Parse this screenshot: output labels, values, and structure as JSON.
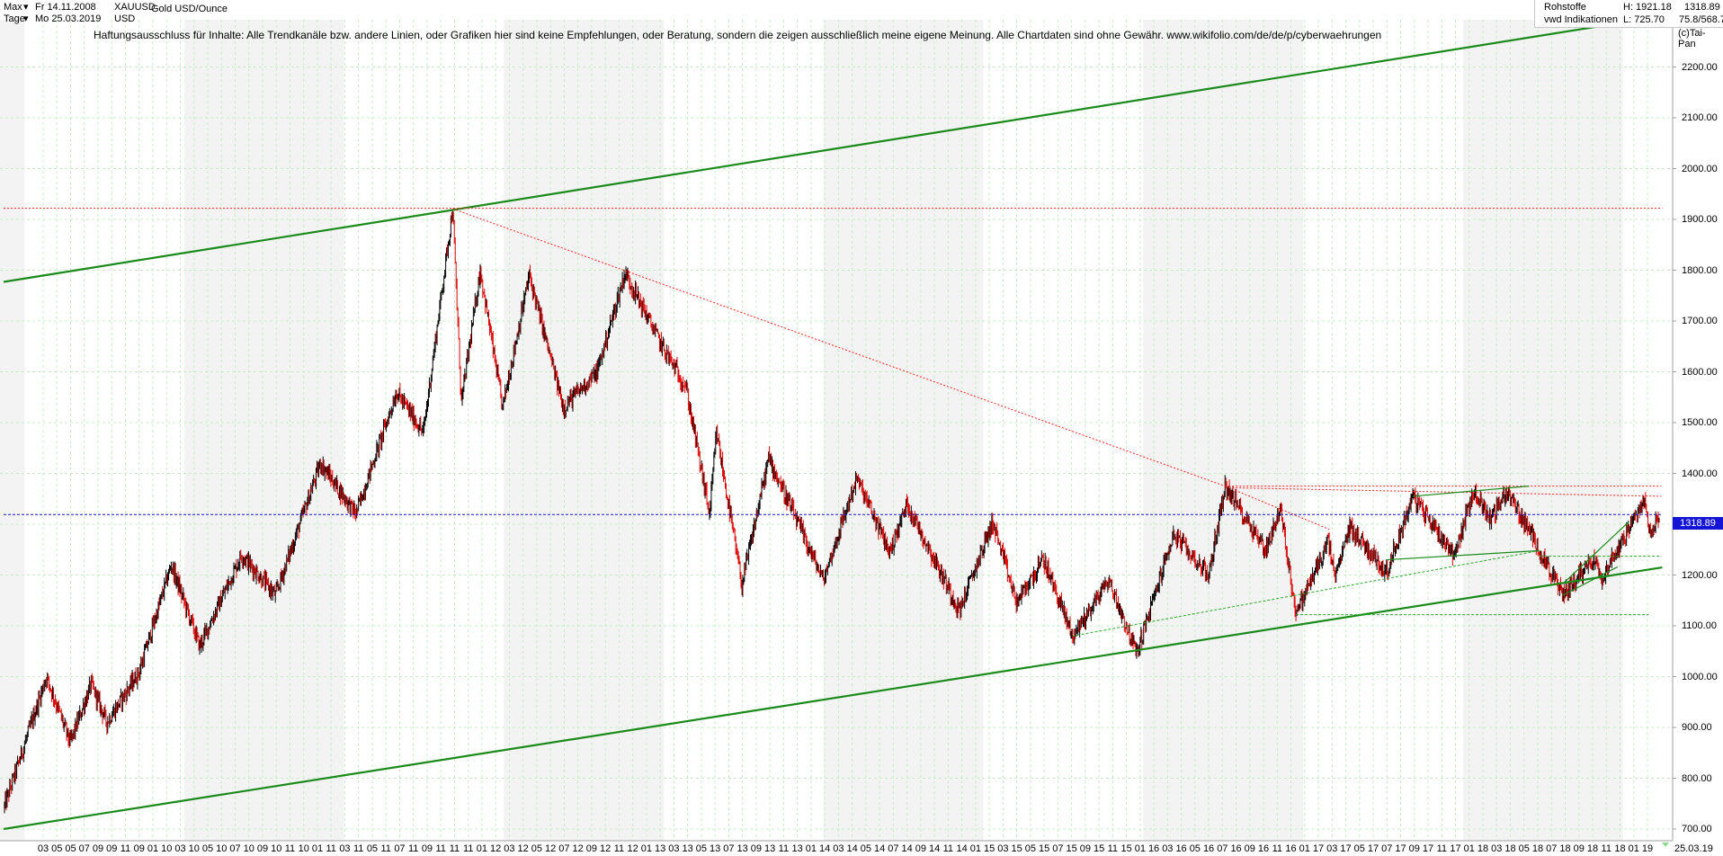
{
  "header": {
    "range_label": "Max",
    "period_label": "Tage",
    "start_date": "Fr 14.11.2008",
    "end_date": "Mo 25.03.2019",
    "symbol": "XAUUSD",
    "currency": "USD",
    "instrument_name": "Gold USD/Ounce"
  },
  "info_box": {
    "category": "Rohstoffe",
    "source": "vwd Indikationen",
    "high": "H: 1921.18",
    "low": "L: 725.70",
    "last": "1318.89",
    "ratio": "75.8/568.7"
  },
  "disclaimer": "Haftungsausschluss für Inhalte: Alle Trendkanäle bzw. andere Linien, oder Grafiken hier sind keine Empfehlungen, oder Beratung, sondern die zeigen ausschließlich meine eigene Meinung. Alle Chartdaten sind ohne Gewähr.  www.wikifolio.com/de/de/p/cyberwaehrungen",
  "copyright": "(c)Tai-Pan",
  "price_badge": "1318.89",
  "end_date_label": "25.03.19",
  "colors": {
    "trend_green": "#1a8a1a",
    "resistance_red": "#ff2020",
    "last_price_blue": "#1414d6",
    "grid_green": "#c8ecc8",
    "candle_up": "#000000",
    "candle_down": "#e00000",
    "band_shade": "#f3f3f3"
  },
  "chart_data": {
    "type": "candlestick",
    "series_name": "XAUUSD",
    "x_range": [
      "2008-11-14",
      "2019-03-25"
    ],
    "ylim": [
      700,
      2300
    ],
    "y_ticks": [
      700,
      800,
      900,
      1000,
      1100,
      1200,
      1300,
      1400,
      1500,
      1600,
      1700,
      1800,
      1900,
      2000,
      2100,
      2200
    ],
    "y_tick_labels": [
      "700.00",
      "800.00",
      "900.00",
      "1000.00",
      "1100.00",
      "1200.00",
      "1300.00",
      "1400.00",
      "1500.00",
      "1600.00",
      "1700.00",
      "1800.00",
      "1900.00",
      "2000.00",
      "2100.00",
      "2200.00"
    ],
    "x_tick_labels": [
      "03",
      "05",
      "05",
      "07",
      "09",
      "09",
      "11",
      "09",
      "01",
      "10",
      "03",
      "10",
      "05",
      "10",
      "07",
      "10",
      "09",
      "10",
      "11",
      "10",
      "01",
      "11",
      "03",
      "11",
      "05",
      "11",
      "07",
      "11",
      "09",
      "11",
      "11",
      "11",
      "01",
      "12",
      "03",
      "12",
      "05",
      "12",
      "07",
      "12",
      "09",
      "12",
      "11",
      "12",
      "01",
      "13",
      "03",
      "13",
      "05",
      "13",
      "07",
      "13",
      "09",
      "13",
      "11",
      "13",
      "01",
      "14",
      "03",
      "14",
      "05",
      "14",
      "07",
      "14",
      "09",
      "14",
      "11",
      "14",
      "01",
      "15",
      "03",
      "15",
      "05",
      "15",
      "07",
      "15",
      "09",
      "15",
      "11",
      "15",
      "01",
      "16",
      "03",
      "16",
      "05",
      "16",
      "07",
      "16",
      "09",
      "16",
      "11",
      "16",
      "01",
      "17",
      "03",
      "17",
      "05",
      "17",
      "07",
      "17",
      "09",
      "17",
      "11",
      "17",
      "01",
      "18",
      "03",
      "18",
      "05",
      "18",
      "07",
      "18",
      "09",
      "18",
      "11",
      "18",
      "01",
      "19"
    ],
    "anchor_points": [
      {
        "date": "2008-11-14",
        "price": 740
      },
      {
        "date": "2009-02-20",
        "price": 1000
      },
      {
        "date": "2009-04-15",
        "price": 870
      },
      {
        "date": "2009-06-02",
        "price": 985
      },
      {
        "date": "2009-07-08",
        "price": 910
      },
      {
        "date": "2009-09-20",
        "price": 1010
      },
      {
        "date": "2009-12-02",
        "price": 1220
      },
      {
        "date": "2010-02-05",
        "price": 1060
      },
      {
        "date": "2010-05-12",
        "price": 1240
      },
      {
        "date": "2010-07-28",
        "price": 1160
      },
      {
        "date": "2010-11-08",
        "price": 1420
      },
      {
        "date": "2011-01-28",
        "price": 1320
      },
      {
        "date": "2011-05-01",
        "price": 1560
      },
      {
        "date": "2011-07-01",
        "price": 1480
      },
      {
        "date": "2011-09-06",
        "price": 1921
      },
      {
        "date": "2011-09-26",
        "price": 1540
      },
      {
        "date": "2011-11-08",
        "price": 1800
      },
      {
        "date": "2011-12-29",
        "price": 1530
      },
      {
        "date": "2012-02-28",
        "price": 1790
      },
      {
        "date": "2012-05-16",
        "price": 1530
      },
      {
        "date": "2012-08-01",
        "price": 1600
      },
      {
        "date": "2012-10-04",
        "price": 1795
      },
      {
        "date": "2012-12-28",
        "price": 1650
      },
      {
        "date": "2013-02-20",
        "price": 1570
      },
      {
        "date": "2013-04-15",
        "price": 1320
      },
      {
        "date": "2013-05-01",
        "price": 1480
      },
      {
        "date": "2013-06-28",
        "price": 1180
      },
      {
        "date": "2013-08-28",
        "price": 1430
      },
      {
        "date": "2013-12-31",
        "price": 1190
      },
      {
        "date": "2014-03-17",
        "price": 1390
      },
      {
        "date": "2014-06-01",
        "price": 1245
      },
      {
        "date": "2014-07-10",
        "price": 1340
      },
      {
        "date": "2014-11-07",
        "price": 1130
      },
      {
        "date": "2015-01-22",
        "price": 1305
      },
      {
        "date": "2015-03-17",
        "price": 1145
      },
      {
        "date": "2015-05-18",
        "price": 1230
      },
      {
        "date": "2015-07-24",
        "price": 1080
      },
      {
        "date": "2015-10-14",
        "price": 1190
      },
      {
        "date": "2015-12-17",
        "price": 1046
      },
      {
        "date": "2016-03-10",
        "price": 1280
      },
      {
        "date": "2016-05-30",
        "price": 1200
      },
      {
        "date": "2016-07-06",
        "price": 1375
      },
      {
        "date": "2016-10-07",
        "price": 1250
      },
      {
        "date": "2016-11-09",
        "price": 1330
      },
      {
        "date": "2016-12-15",
        "price": 1125
      },
      {
        "date": "2017-02-27",
        "price": 1265
      },
      {
        "date": "2017-03-15",
        "price": 1195
      },
      {
        "date": "2017-04-17",
        "price": 1295
      },
      {
        "date": "2017-07-10",
        "price": 1205
      },
      {
        "date": "2017-09-08",
        "price": 1355
      },
      {
        "date": "2017-12-12",
        "price": 1240
      },
      {
        "date": "2018-01-25",
        "price": 1365
      },
      {
        "date": "2018-03-05",
        "price": 1310
      },
      {
        "date": "2018-04-11",
        "price": 1365
      },
      {
        "date": "2018-06-15",
        "price": 1265
      },
      {
        "date": "2018-08-16",
        "price": 1160
      },
      {
        "date": "2018-10-26",
        "price": 1235
      },
      {
        "date": "2018-11-13",
        "price": 1195
      },
      {
        "date": "2019-02-20",
        "price": 1345
      },
      {
        "date": "2019-03-07",
        "price": 1280
      },
      {
        "date": "2019-03-25",
        "price": 1319
      }
    ],
    "lines": [
      {
        "name": "upper-channel",
        "style": "solid-green",
        "from": {
          "date": "2008-11-14",
          "price": 1777
        },
        "to": {
          "date": "2019-04-01",
          "price": 2300
        }
      },
      {
        "name": "lower-channel",
        "style": "solid-green",
        "from": {
          "date": "2008-11-14",
          "price": 700
        },
        "to": {
          "date": "2019-04-01",
          "price": 1215
        }
      },
      {
        "name": "ath-horizontal",
        "style": "dotted-red",
        "from": {
          "date": "2008-11-14",
          "price": 1922
        },
        "to": {
          "date": "2019-04-01",
          "price": 1922
        }
      },
      {
        "name": "last-price",
        "style": "dotted-blue",
        "from": {
          "date": "2008-11-14",
          "price": 1319
        },
        "to": {
          "date": "2019-04-01",
          "price": 1319
        }
      },
      {
        "name": "ath-to-2016-top",
        "style": "dotted-red",
        "from": {
          "date": "2011-09-06",
          "price": 1921
        },
        "to": {
          "date": "2016-07-06",
          "price": 1375
        }
      },
      {
        "name": "2016-top-down",
        "style": "dotted-red",
        "from": {
          "date": "2016-07-06",
          "price": 1375
        },
        "to": {
          "date": "2017-03-01",
          "price": 1290
        }
      },
      {
        "name": "2016-high-horizontal",
        "style": "dotted-red",
        "from": {
          "date": "2016-07-06",
          "price": 1375
        },
        "to": {
          "date": "2019-03-30",
          "price": 1375
        }
      },
      {
        "name": "2016-high-slope",
        "style": "dotted-red",
        "from": {
          "date": "2016-07-06",
          "price": 1372
        },
        "to": {
          "date": "2019-03-30",
          "price": 1355
        }
      },
      {
        "name": "2017-resistance",
        "style": "solid-green-thin",
        "from": {
          "date": "2017-09-08",
          "price": 1355
        },
        "to": {
          "date": "2018-06-01",
          "price": 1375
        }
      },
      {
        "name": "2017-support",
        "style": "solid-green-thin",
        "from": {
          "date": "2017-07-10",
          "price": 1230
        },
        "to": {
          "date": "2018-06-25",
          "price": 1248
        }
      },
      {
        "name": "2015-support-dotted",
        "style": "dotted-green",
        "from": {
          "date": "2015-07-24",
          "price": 1080
        },
        "to": {
          "date": "2018-06-25",
          "price": 1248
        }
      },
      {
        "name": "2016-low-horizontal",
        "style": "dotted-green",
        "from": {
          "date": "2016-12-15",
          "price": 1122
        },
        "to": {
          "date": "2019-03-01",
          "price": 1122
        }
      },
      {
        "name": "2018-support-horizontal",
        "style": "dotted-green",
        "from": {
          "date": "2018-06-25",
          "price": 1237
        },
        "to": {
          "date": "2019-03-30",
          "price": 1237
        }
      },
      {
        "name": "wedge-upper",
        "style": "solid-green-thin",
        "from": {
          "date": "2018-08-16",
          "price": 1182
        },
        "to": {
          "date": "2019-01-15",
          "price": 1305
        }
      },
      {
        "name": "wedge-lower",
        "style": "solid-green-thin",
        "from": {
          "date": "2018-08-16",
          "price": 1160
        },
        "to": {
          "date": "2018-12-20",
          "price": 1216
        }
      }
    ]
  }
}
